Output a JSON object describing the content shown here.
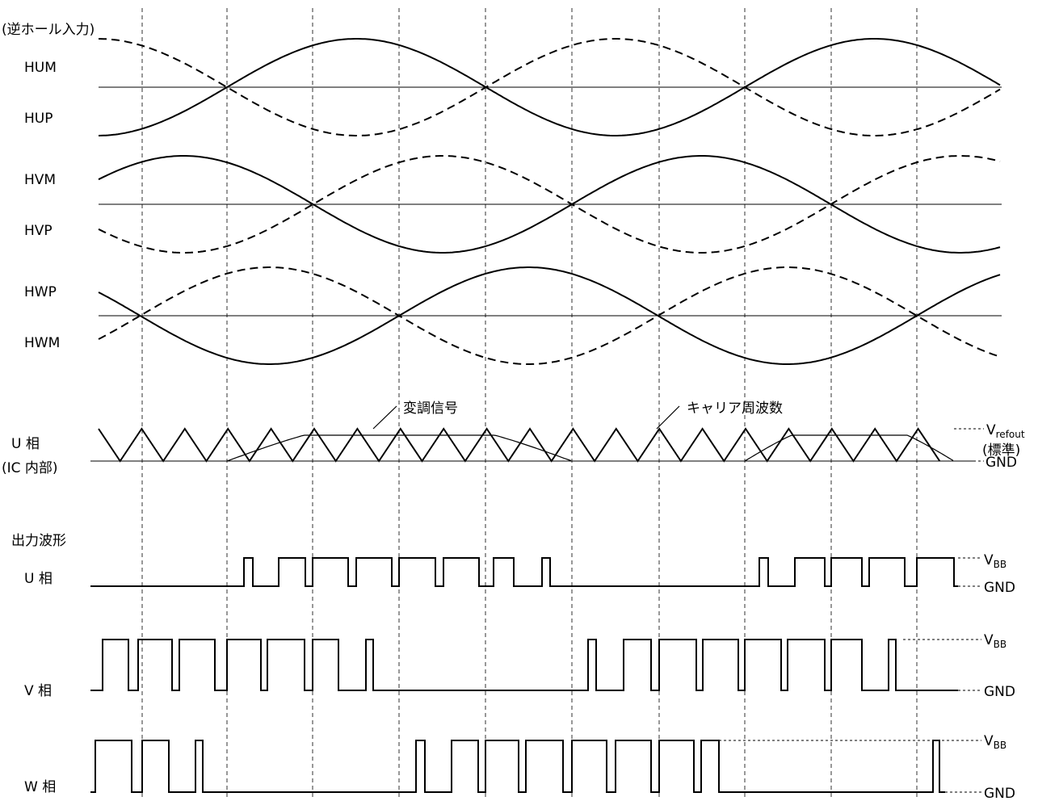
{
  "header": {
    "caption": "(逆ホール入力)"
  },
  "hall_labels": {
    "hum": "HUM",
    "hup": "HUP",
    "hvm": "HVM",
    "hvp": "HVP",
    "hwp": "HWP",
    "hwm": "HWM"
  },
  "modulation": {
    "phase_label_line1": "U 相",
    "phase_label_line2": "(IC 内部)",
    "modulation_signal_label": "変調信号",
    "carrier_label": "キャリア周波数",
    "vref_label_main": "V",
    "vref_label_sub": "refout",
    "vref_note": "(標準)",
    "gnd_label": "GND"
  },
  "outputs": {
    "section_title": "出力波形",
    "u_label": "U 相",
    "v_label": "V 相",
    "w_label": "W 相",
    "vbb_main": "V",
    "vbb_sub": "BB",
    "gnd_label": "GND"
  },
  "colors": {
    "line": "#000000",
    "background": "#ffffff"
  }
}
